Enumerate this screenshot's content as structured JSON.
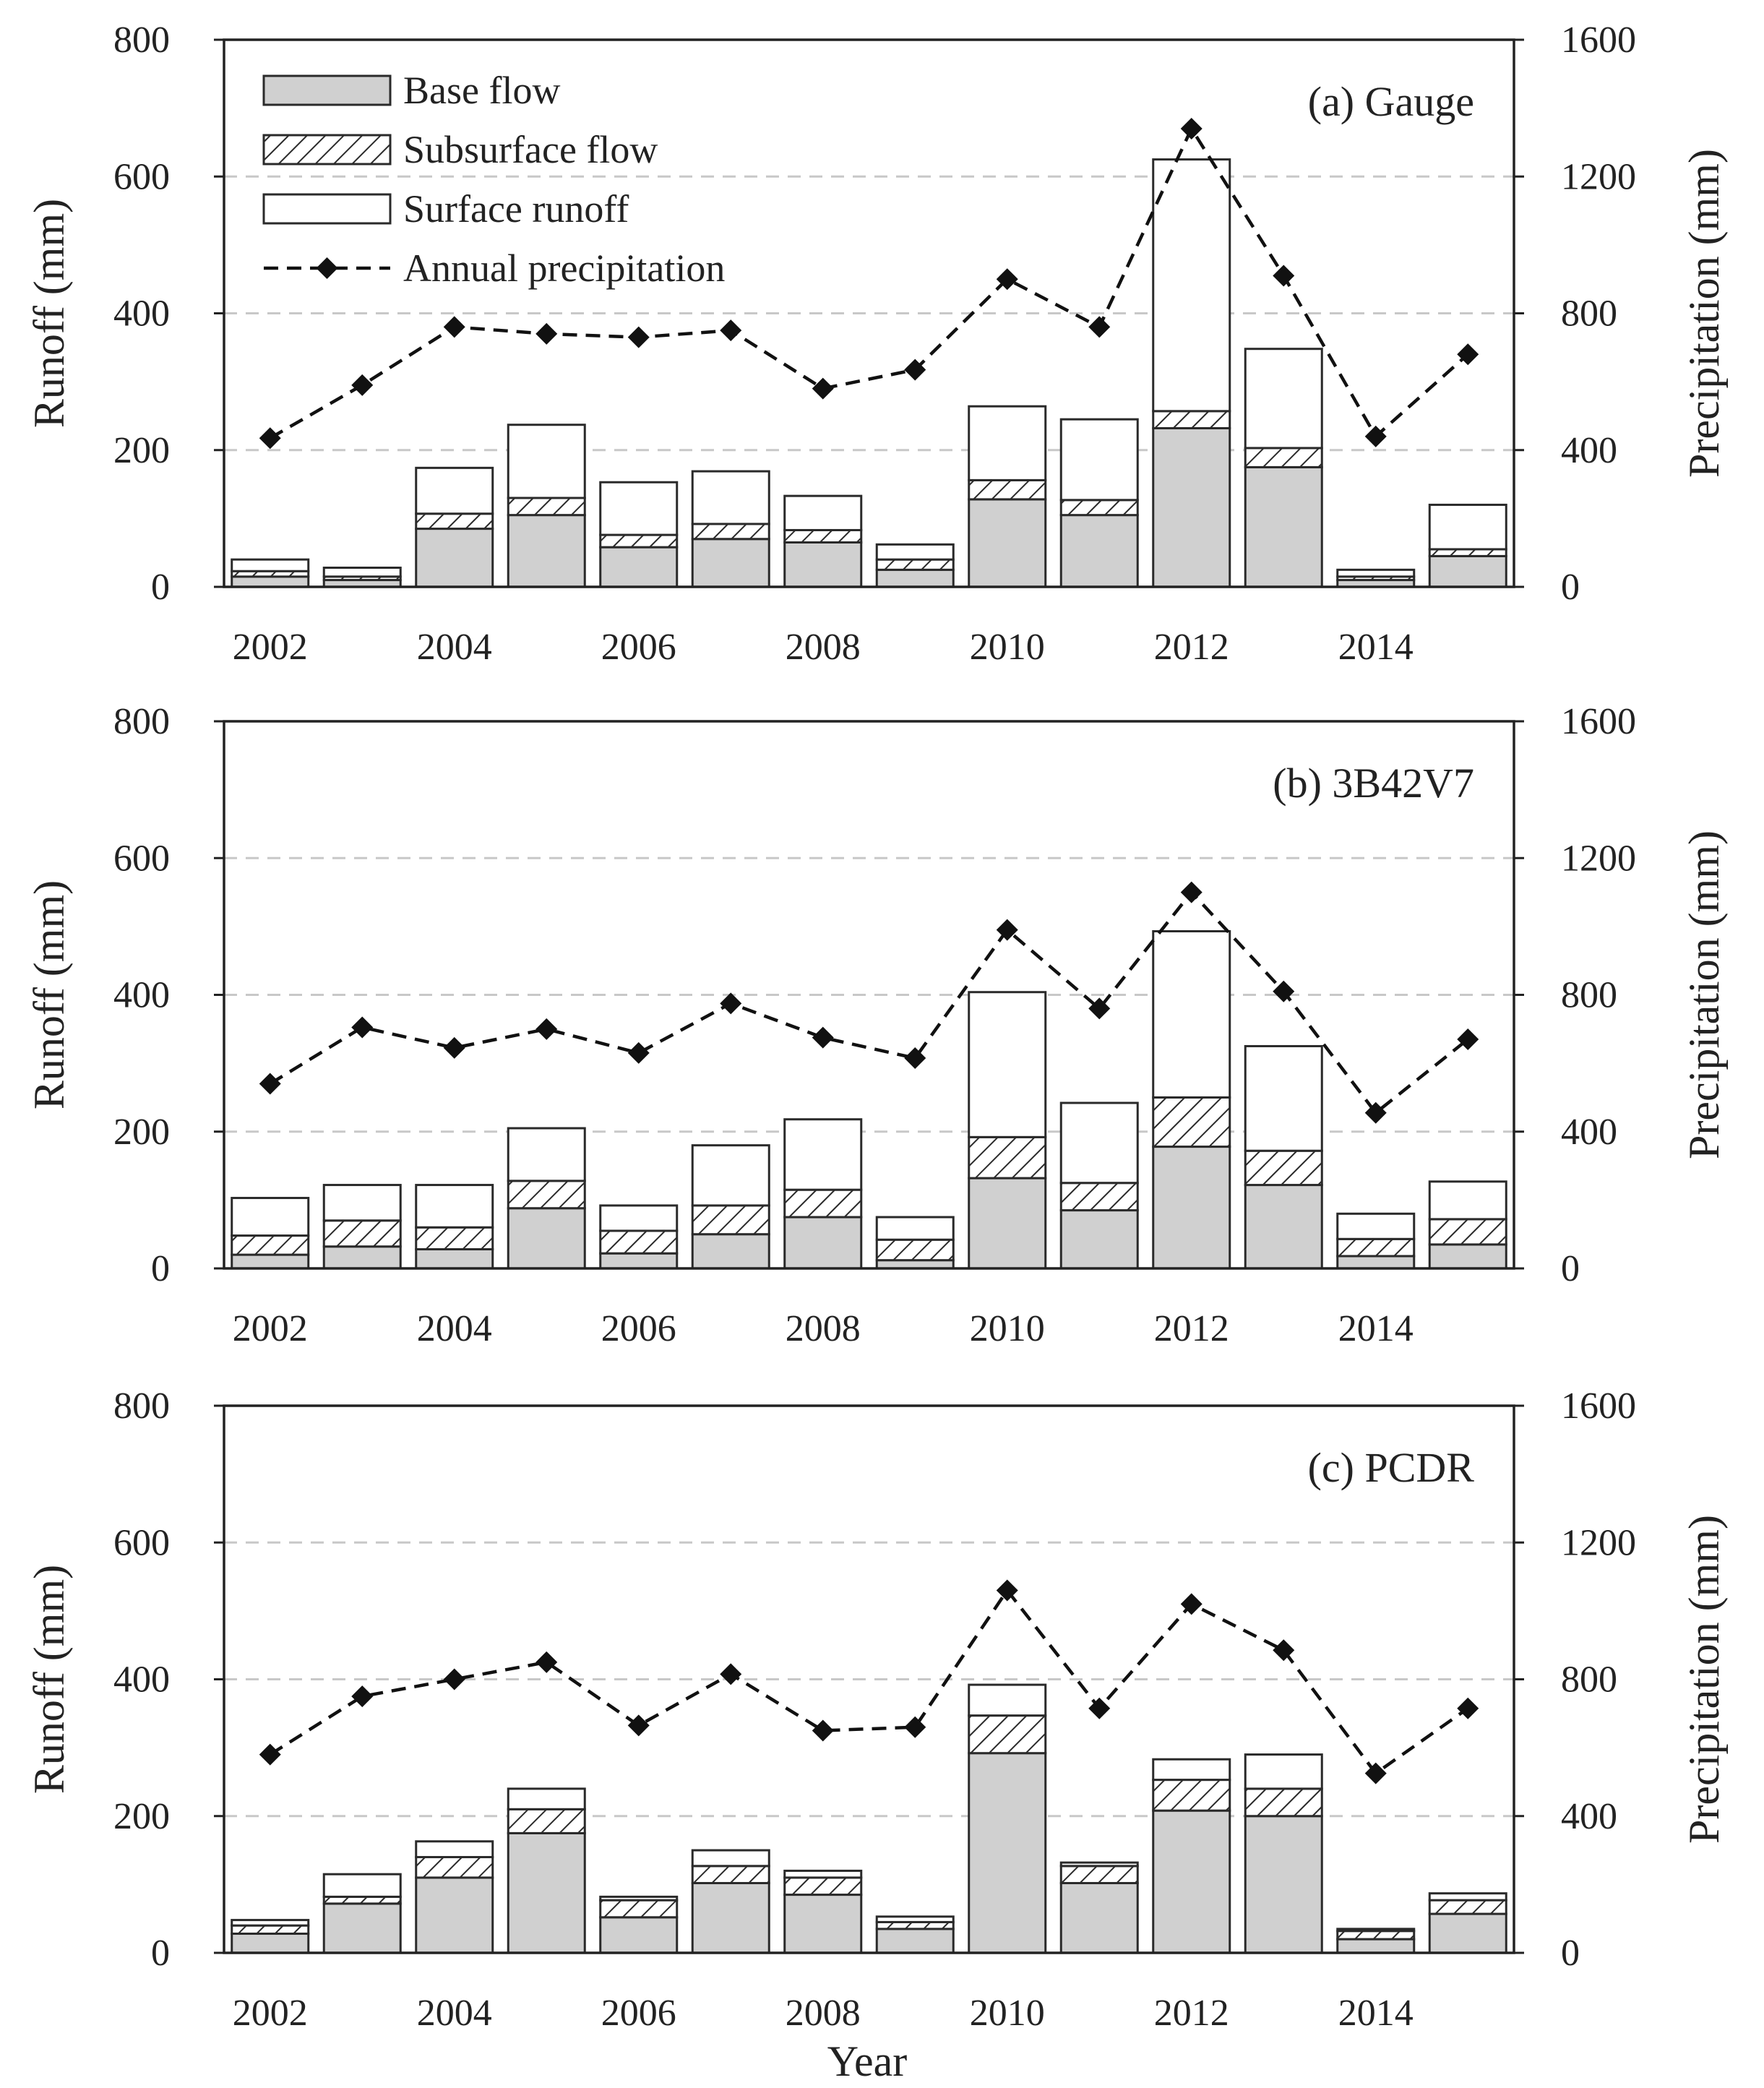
{
  "colors": {
    "base_fill": "#d0d0d0",
    "bar_edge": "#2a2a2a",
    "grid": "#c8c8c8",
    "frame": "#222222",
    "precip_line": "#111111"
  },
  "legend": {
    "base": "Base flow",
    "subsurface": "Subsurface flow",
    "surface": "Surface runoff",
    "precip": "Annual precipitation"
  },
  "x_axis_title": "Year",
  "chart_data": [
    {
      "type": "bar",
      "stacked": true,
      "title": "(a) Gauge",
      "categories": [
        "2002",
        "2003",
        "2004",
        "2005",
        "2006",
        "2007",
        "2008",
        "2009",
        "2010",
        "2011",
        "2012",
        "2013",
        "2014",
        "2015"
      ],
      "x_tick_labels": [
        "2002",
        "2004",
        "2006",
        "2008",
        "2010",
        "2012",
        "2014"
      ],
      "ylabel": "Runoff (mm)",
      "y2label": "Precipitation (mm)",
      "ylim": [
        0,
        800
      ],
      "y2lim": [
        0,
        1600
      ],
      "yticks": [
        "0",
        "200",
        "400",
        "600",
        "800"
      ],
      "y2ticks": [
        "0",
        "400",
        "800",
        "1200",
        "1600"
      ],
      "grid": true,
      "legend_position": "top-left",
      "series": [
        {
          "name": "Base flow",
          "values": [
            15,
            10,
            85,
            105,
            58,
            70,
            65,
            25,
            128,
            105,
            232,
            175,
            10,
            45
          ]
        },
        {
          "name": "Subsurface flow",
          "values": [
            8,
            5,
            22,
            25,
            18,
            22,
            18,
            15,
            28,
            22,
            25,
            28,
            5,
            10
          ]
        },
        {
          "name": "Surface runoff",
          "values": [
            17,
            13,
            67,
            107,
            77,
            77,
            50,
            22,
            108,
            118,
            368,
            145,
            10,
            65
          ]
        },
        {
          "name": "Annual precipitation",
          "axis": "right",
          "type": "line",
          "values": [
            435,
            590,
            760,
            740,
            730,
            750,
            580,
            635,
            900,
            760,
            1340,
            910,
            440,
            680
          ]
        }
      ]
    },
    {
      "type": "bar",
      "stacked": true,
      "title": "(b) 3B42V7",
      "categories": [
        "2002",
        "2003",
        "2004",
        "2005",
        "2006",
        "2007",
        "2008",
        "2009",
        "2010",
        "2011",
        "2012",
        "2013",
        "2014",
        "2015"
      ],
      "x_tick_labels": [
        "2002",
        "2004",
        "2006",
        "2008",
        "2010",
        "2012",
        "2014"
      ],
      "ylabel": "Runoff (mm)",
      "y2label": "Precipitation (mm)",
      "ylim": [
        0,
        800
      ],
      "y2lim": [
        0,
        1600
      ],
      "yticks": [
        "0",
        "200",
        "400",
        "600",
        "800"
      ],
      "y2ticks": [
        "0",
        "400",
        "800",
        "1200",
        "1600"
      ],
      "grid": true,
      "series": [
        {
          "name": "Base flow",
          "values": [
            20,
            32,
            28,
            88,
            22,
            50,
            75,
            12,
            132,
            85,
            178,
            122,
            18,
            35
          ]
        },
        {
          "name": "Subsurface flow",
          "values": [
            28,
            38,
            32,
            40,
            33,
            42,
            40,
            30,
            60,
            40,
            72,
            50,
            25,
            37
          ]
        },
        {
          "name": "Surface runoff",
          "values": [
            55,
            52,
            62,
            77,
            37,
            88,
            103,
            33,
            212,
            117,
            243,
            153,
            37,
            55
          ]
        },
        {
          "name": "Annual precipitation",
          "axis": "right",
          "type": "line",
          "values": [
            540,
            705,
            645,
            700,
            630,
            775,
            675,
            615,
            990,
            760,
            1100,
            810,
            455,
            670
          ]
        }
      ]
    },
    {
      "type": "bar",
      "stacked": true,
      "title": "(c) PCDR",
      "categories": [
        "2002",
        "2003",
        "2004",
        "2005",
        "2006",
        "2007",
        "2008",
        "2009",
        "2010",
        "2011",
        "2012",
        "2013",
        "2014",
        "2015"
      ],
      "x_tick_labels": [
        "2002",
        "2004",
        "2006",
        "2008",
        "2010",
        "2012",
        "2014"
      ],
      "ylabel": "Runoff (mm)",
      "y2label": "Precipitation (mm)",
      "ylim": [
        0,
        800
      ],
      "y2lim": [
        0,
        1600
      ],
      "yticks": [
        "0",
        "200",
        "400",
        "600",
        "800"
      ],
      "y2ticks": [
        "0",
        "400",
        "800",
        "1200",
        "1600"
      ],
      "grid": true,
      "series": [
        {
          "name": "Base flow",
          "values": [
            28,
            72,
            110,
            175,
            52,
            102,
            85,
            35,
            292,
            102,
            208,
            200,
            20,
            57
          ]
        },
        {
          "name": "Subsurface flow",
          "values": [
            12,
            10,
            30,
            35,
            25,
            25,
            25,
            10,
            55,
            25,
            45,
            40,
            12,
            20
          ]
        },
        {
          "name": "Surface runoff",
          "values": [
            8,
            33,
            23,
            30,
            5,
            23,
            10,
            8,
            45,
            5,
            30,
            50,
            3,
            10
          ]
        },
        {
          "name": "Annual precipitation",
          "axis": "right",
          "type": "line",
          "values": [
            580,
            750,
            800,
            850,
            665,
            815,
            650,
            660,
            1060,
            715,
            1020,
            885,
            525,
            715
          ]
        }
      ]
    }
  ]
}
